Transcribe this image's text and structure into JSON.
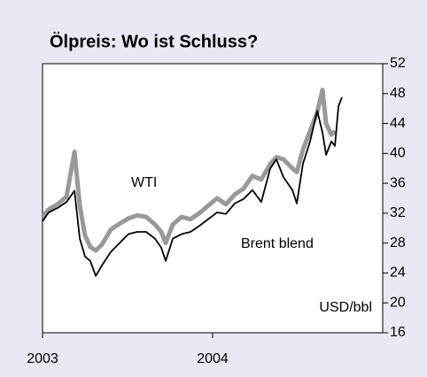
{
  "chart_data": {
    "type": "line",
    "title": "Ölpreis: Wo ist Schluss?",
    "y_axis_label": "USD/bbl",
    "x": [
      2003.0,
      2003.036,
      2003.089,
      2003.141,
      2003.188,
      2003.219,
      2003.25,
      2003.281,
      2003.313,
      2003.349,
      2003.401,
      2003.453,
      2003.505,
      2003.557,
      2003.609,
      2003.661,
      2003.698,
      2003.724,
      2003.766,
      2003.818,
      2003.87,
      2003.922,
      2003.974,
      2004.026,
      2004.078,
      2004.13,
      2004.182,
      2004.234,
      2004.286,
      2004.339,
      2004.375,
      2004.417,
      2004.469,
      2004.495,
      2004.531,
      2004.573,
      2004.615,
      2004.646,
      2004.667,
      2004.698,
      2004.719,
      2004.74,
      2004.76
    ],
    "series": [
      {
        "name": "WTI",
        "color": "#999999",
        "width": 5,
        "values": [
          31.5,
          32.5,
          33.2,
          34.2,
          40.2,
          33,
          29,
          27.5,
          27,
          27.8,
          29.8,
          30.6,
          31.3,
          31.7,
          31.5,
          30.5,
          29.5,
          28,
          30.5,
          31.5,
          31.2,
          32,
          33,
          34,
          33.2,
          34.5,
          35.3,
          37,
          36.5,
          38.6,
          39.5,
          39.2,
          38,
          37.5,
          40.5,
          43,
          45.5,
          48.5,
          44,
          42.5,
          43,
          null,
          null
        ]
      },
      {
        "name": "Brent blend",
        "color": "#000000",
        "width": 1.8,
        "values": [
          30.9,
          32.1,
          32.7,
          33.5,
          35,
          28.6,
          26.2,
          25.6,
          23.6,
          25,
          26.8,
          28,
          29.2,
          29.5,
          29.5,
          28.6,
          27.4,
          25.6,
          28.6,
          29.2,
          29.5,
          30.3,
          31.2,
          32.1,
          31.9,
          33.3,
          33.9,
          35.1,
          33.5,
          38,
          39.2,
          36.8,
          35.1,
          33.3,
          38.6,
          41.6,
          45.7,
          42.8,
          39.8,
          41.6,
          41,
          46.3,
          47.5
        ]
      }
    ],
    "xlim": [
      2003,
      2005
    ],
    "xticks": [
      2003,
      2004
    ],
    "ylim": [
      16,
      52
    ],
    "yticks": [
      16,
      20,
      24,
      28,
      32,
      36,
      40,
      44,
      48,
      52
    ]
  }
}
